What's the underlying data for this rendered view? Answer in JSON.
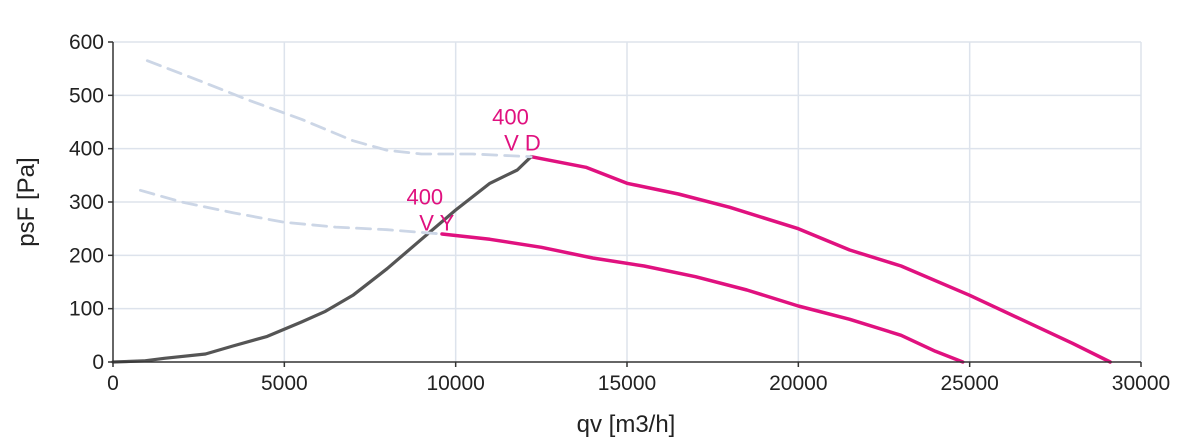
{
  "chart_data": {
    "type": "line",
    "xlabel": "qv [m3/h]",
    "ylabel": "psF [Pa]",
    "xlim": [
      0,
      30000
    ],
    "ylim": [
      0,
      600
    ],
    "xticks": [
      0,
      5000,
      10000,
      15000,
      20000,
      25000,
      30000
    ],
    "yticks": [
      0,
      100,
      200,
      300,
      400,
      500,
      600
    ],
    "grid": true,
    "colors": {
      "operating": "#e0117f",
      "system": "#555555",
      "extrapolated": "#ccd6e6",
      "grid": "#dde3ec",
      "axis": "#333333"
    },
    "series": [
      {
        "style": "operating",
        "x": [
          12200,
          13800,
          15000,
          16500,
          18000,
          20000,
          21500,
          23000,
          25000,
          26500,
          28000,
          29100
        ],
        "y": [
          385,
          365,
          335,
          315,
          290,
          250,
          210,
          180,
          125,
          80,
          35,
          0
        ]
      },
      {
        "style": "operating",
        "x": [
          9600,
          11000,
          12500,
          14000,
          15500,
          17000,
          18500,
          20000,
          21500,
          23000,
          24000,
          24800
        ],
        "y": [
          240,
          230,
          215,
          195,
          180,
          160,
          135,
          105,
          80,
          50,
          20,
          0
        ]
      },
      {
        "style": "system",
        "x": [
          0,
          900,
          1500,
          2700,
          3500,
          4500,
          5500,
          6200,
          7000,
          8000,
          9000,
          10000,
          11000,
          11800,
          12200
        ],
        "y": [
          0,
          2,
          7,
          15,
          30,
          48,
          75,
          95,
          125,
          175,
          230,
          285,
          335,
          360,
          385
        ]
      },
      {
        "style": "extrapolated",
        "x": [
          1000,
          2500,
          4000,
          5500,
          7000,
          8000,
          9000,
          10500,
          12200
        ],
        "y": [
          565,
          528,
          490,
          455,
          415,
          397,
          390,
          390,
          385
        ]
      },
      {
        "style": "extrapolated",
        "x": [
          800,
          2000,
          3500,
          5000,
          6500,
          8000,
          9600
        ],
        "y": [
          322,
          300,
          280,
          262,
          253,
          248,
          240
        ]
      }
    ],
    "annotations": [
      {
        "lines": [
          "400",
          "V D"
        ],
        "x": 11600,
        "y": 445,
        "color": "#e0117f"
      },
      {
        "lines": [
          "400",
          "V Y"
        ],
        "x": 9100,
        "y": 295,
        "color": "#e0117f"
      }
    ]
  }
}
